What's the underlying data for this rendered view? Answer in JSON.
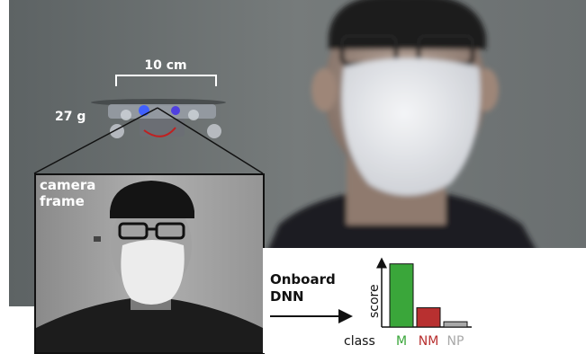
{
  "annotations": {
    "width_label": "10 cm",
    "mass_label": "27 g",
    "camera_label_line1": "camera",
    "camera_label_line2": "frame",
    "dnn_line1": "Onboard",
    "dnn_line2": "DNN"
  },
  "chart_data": {
    "type": "bar",
    "ylabel": "score",
    "xlabel": "class",
    "categories": [
      "M",
      "NM",
      "NP"
    ],
    "values": [
      0.95,
      0.29,
      0.08
    ],
    "ylim": [
      0,
      1
    ],
    "colors": [
      "#3aa63a",
      "#b83030",
      "#a8a8a8"
    ],
    "label_colors": [
      "#3aa63a",
      "#b83030",
      "#a8a8a8"
    ]
  }
}
